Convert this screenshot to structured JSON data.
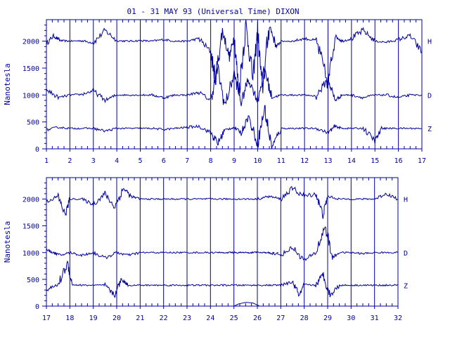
{
  "colors": {
    "ink": "#0000a0",
    "background": "#ffffff"
  },
  "chart_data": [
    {
      "type": "line",
      "title": "01 - 31 MAY 93 (Universal Time) DIXON",
      "ylabel": "Nanotesla",
      "xlabel": "",
      "xlim": [
        1,
        17
      ],
      "ylim": [
        0,
        2400
      ],
      "x_ticks": [
        "1",
        "2",
        "3",
        "4",
        "5",
        "6",
        "7",
        "8",
        "9",
        "10",
        "11",
        "12",
        "13",
        "14",
        "15",
        "16",
        "17"
      ],
      "y_ticks": [
        "0",
        "500",
        "1000",
        "1500",
        "2000"
      ],
      "grid": "vertical lines at each day",
      "legend": "right",
      "series": [
        {
          "name": "H",
          "baseline": 2000,
          "values": [
            [
              1,
              1950
            ],
            [
              1.3,
              2100
            ],
            [
              1.6,
              2010
            ],
            [
              2,
              2000
            ],
            [
              2.5,
              2010
            ],
            [
              3,
              1970
            ],
            [
              3.5,
              2200
            ],
            [
              4,
              2010
            ],
            [
              4.5,
              2000
            ],
            [
              5,
              2010
            ],
            [
              5.5,
              2000
            ],
            [
              6,
              2030
            ],
            [
              6.5,
              2000
            ],
            [
              7,
              2000
            ],
            [
              7.5,
              2050
            ],
            [
              8,
              1800
            ],
            [
              8.2,
              1300
            ],
            [
              8.5,
              2200
            ],
            [
              8.8,
              1700
            ],
            [
              9,
              2100
            ],
            [
              9.2,
              1050
            ],
            [
              9.5,
              2300
            ],
            [
              9.8,
              1300
            ],
            [
              10,
              2200
            ],
            [
              10.2,
              1100
            ],
            [
              10.5,
              2300
            ],
            [
              10.8,
              1900
            ],
            [
              11,
              2000
            ],
            [
              11.5,
              2000
            ],
            [
              12,
              2050
            ],
            [
              12.5,
              2010
            ],
            [
              13,
              1200
            ],
            [
              13.3,
              2100
            ],
            [
              13.6,
              2000
            ],
            [
              14,
              2050
            ],
            [
              14.5,
              2200
            ],
            [
              15,
              2000
            ],
            [
              15.5,
              1980
            ],
            [
              16,
              2030
            ],
            [
              16.5,
              2100
            ],
            [
              17,
              1800
            ]
          ]
        },
        {
          "name": "D",
          "baseline": 1000,
          "values": [
            [
              1,
              1100
            ],
            [
              1.5,
              950
            ],
            [
              2,
              1000
            ],
            [
              2.5,
              1010
            ],
            [
              3,
              1080
            ],
            [
              3.5,
              900
            ],
            [
              4,
              1000
            ],
            [
              4.5,
              1000
            ],
            [
              5,
              1000
            ],
            [
              5.5,
              1000
            ],
            [
              6,
              950
            ],
            [
              6.5,
              1000
            ],
            [
              7,
              1000
            ],
            [
              7.5,
              1050
            ],
            [
              8,
              900
            ],
            [
              8.3,
              1500
            ],
            [
              8.6,
              800
            ],
            [
              9,
              1400
            ],
            [
              9.3,
              850
            ],
            [
              9.6,
              1300
            ],
            [
              10,
              900
            ],
            [
              10.3,
              1500
            ],
            [
              10.6,
              950
            ],
            [
              11,
              1000
            ],
            [
              11.5,
              1000
            ],
            [
              12,
              1000
            ],
            [
              12.5,
              980
            ],
            [
              13,
              1300
            ],
            [
              13.3,
              900
            ],
            [
              13.6,
              1000
            ],
            [
              14,
              1000
            ],
            [
              14.5,
              950
            ],
            [
              15,
              1000
            ],
            [
              15.5,
              1000
            ],
            [
              16,
              950
            ],
            [
              16.5,
              1000
            ],
            [
              17,
              1000
            ]
          ]
        },
        {
          "name": "Z",
          "baseline": 380,
          "values": [
            [
              1,
              350
            ],
            [
              1.5,
              400
            ],
            [
              2,
              380
            ],
            [
              2.5,
              380
            ],
            [
              3,
              380
            ],
            [
              3.5,
              330
            ],
            [
              4,
              380
            ],
            [
              4.5,
              380
            ],
            [
              5,
              380
            ],
            [
              5.5,
              380
            ],
            [
              6,
              360
            ],
            [
              6.5,
              380
            ],
            [
              7,
              400
            ],
            [
              7.5,
              420
            ],
            [
              8,
              300
            ],
            [
              8.3,
              100
            ],
            [
              8.6,
              350
            ],
            [
              9,
              400
            ],
            [
              9.3,
              300
            ],
            [
              9.6,
              600
            ],
            [
              10,
              100
            ],
            [
              10.3,
              750
            ],
            [
              10.6,
              20
            ],
            [
              11,
              380
            ],
            [
              11.5,
              380
            ],
            [
              12,
              380
            ],
            [
              12.5,
              380
            ],
            [
              13,
              300
            ],
            [
              13.3,
              420
            ],
            [
              13.6,
              380
            ],
            [
              14,
              380
            ],
            [
              14.5,
              380
            ],
            [
              15,
              150
            ],
            [
              15.3,
              380
            ],
            [
              15.5,
              380
            ],
            [
              16,
              380
            ],
            [
              16.5,
              380
            ],
            [
              17,
              380
            ]
          ]
        }
      ]
    },
    {
      "type": "line",
      "title": "",
      "ylabel": "Nanotesla",
      "xlabel": "",
      "xlim": [
        17,
        32
      ],
      "ylim": [
        0,
        2400
      ],
      "x_ticks": [
        "17",
        "18",
        "19",
        "20",
        "21",
        "22",
        "23",
        "24",
        "25",
        "26",
        "27",
        "28",
        "29",
        "30",
        "31",
        "32"
      ],
      "y_ticks": [
        "0",
        "500",
        "1000",
        "1500",
        "2000"
      ],
      "grid": "vertical lines at each day",
      "legend": "right",
      "series": [
        {
          "name": "H",
          "baseline": 2000,
          "values": [
            [
              17,
              1950
            ],
            [
              17.5,
              2050
            ],
            [
              17.8,
              1700
            ],
            [
              18,
              2000
            ],
            [
              18.5,
              2000
            ],
            [
              19,
              1900
            ],
            [
              19.5,
              2100
            ],
            [
              19.9,
              1850
            ],
            [
              20.3,
              2200
            ],
            [
              20.6,
              2050
            ],
            [
              21,
              2000
            ],
            [
              21.5,
              2000
            ],
            [
              22,
              2000
            ],
            [
              22.5,
              2000
            ],
            [
              23,
              2000
            ],
            [
              23.5,
              2000
            ],
            [
              24,
              2000
            ],
            [
              24.5,
              2000
            ],
            [
              25,
              2000
            ],
            [
              25.5,
              2000
            ],
            [
              26,
              2000
            ],
            [
              26.5,
              2050
            ],
            [
              27,
              2000
            ],
            [
              27.5,
              2200
            ],
            [
              28,
              2050
            ],
            [
              28.5,
              2100
            ],
            [
              28.8,
              1700
            ],
            [
              29,
              2050
            ],
            [
              29.5,
              2000
            ],
            [
              30,
              2000
            ],
            [
              30.5,
              2000
            ],
            [
              31,
              2000
            ],
            [
              31.5,
              2100
            ],
            [
              32,
              2000
            ]
          ]
        },
        {
          "name": "D",
          "baseline": 1000,
          "values": [
            [
              17,
              1050
            ],
            [
              17.3,
              1000
            ],
            [
              17.6,
              950
            ],
            [
              18,
              1000
            ],
            [
              18.5,
              950
            ],
            [
              19,
              1000
            ],
            [
              19.5,
              900
            ],
            [
              20,
              1000
            ],
            [
              20.5,
              950
            ],
            [
              21,
              1000
            ],
            [
              21.5,
              1000
            ],
            [
              22,
              1000
            ],
            [
              22.5,
              1000
            ],
            [
              23,
              1000
            ],
            [
              23.5,
              1000
            ],
            [
              24,
              1000
            ],
            [
              24.5,
              1000
            ],
            [
              25,
              1000
            ],
            [
              25.5,
              1000
            ],
            [
              26,
              1000
            ],
            [
              26.5,
              1000
            ],
            [
              27,
              950
            ],
            [
              27.5,
              1100
            ],
            [
              28,
              850
            ],
            [
              28.5,
              1000
            ],
            [
              28.9,
              1500
            ],
            [
              29.2,
              900
            ],
            [
              29.5,
              1000
            ],
            [
              30,
              1000
            ],
            [
              30.5,
              980
            ],
            [
              31,
              1000
            ],
            [
              31.5,
              1000
            ],
            [
              32,
              1000
            ]
          ]
        },
        {
          "name": "Z",
          "baseline": 390,
          "values": [
            [
              17,
              300
            ],
            [
              17.5,
              400
            ],
            [
              17.9,
              800
            ],
            [
              18.1,
              400
            ],
            [
              18.5,
              390
            ],
            [
              19,
              390
            ],
            [
              19.5,
              390
            ],
            [
              19.9,
              200
            ],
            [
              20.2,
              500
            ],
            [
              20.5,
              390
            ],
            [
              21,
              390
            ],
            [
              21.5,
              390
            ],
            [
              22,
              390
            ],
            [
              22.5,
              390
            ],
            [
              23,
              390
            ],
            [
              23.5,
              390
            ],
            [
              24,
              390
            ],
            [
              24.5,
              390
            ],
            [
              25,
              390
            ],
            [
              25.5,
              390
            ],
            [
              26,
              390
            ],
            [
              26.5,
              390
            ],
            [
              27,
              390
            ],
            [
              27.5,
              450
            ],
            [
              27.8,
              200
            ],
            [
              28,
              400
            ],
            [
              28.5,
              390
            ],
            [
              28.8,
              600
            ],
            [
              29.1,
              200
            ],
            [
              29.5,
              390
            ],
            [
              30,
              390
            ],
            [
              30.5,
              390
            ],
            [
              31,
              390
            ],
            [
              31.5,
              390
            ],
            [
              32,
              390
            ]
          ]
        },
        {
          "name": "",
          "baseline": 50,
          "values": [
            [
              25,
              0
            ],
            [
              25.2,
              40
            ],
            [
              25.5,
              70
            ],
            [
              25.8,
              60
            ],
            [
              26,
              20
            ],
            [
              26.1,
              0
            ]
          ]
        }
      ]
    }
  ]
}
